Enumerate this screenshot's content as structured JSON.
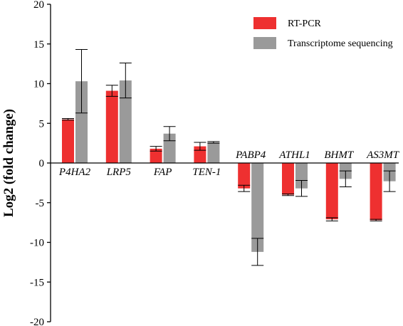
{
  "chart_data": {
    "type": "bar",
    "title": "",
    "xlabel": "",
    "ylabel": "Log2 (fold change)",
    "ylim": [
      -20,
      20
    ],
    "yticks": [
      -20,
      -15,
      -10,
      -5,
      0,
      5,
      10,
      15,
      20
    ],
    "categories": [
      "P4HA2",
      "LRP5",
      "FAP",
      "TEN-1",
      "PABP4",
      "ATHL1",
      "BHMT",
      "AS3MT"
    ],
    "series": [
      {
        "name": "RT-PCR",
        "color": "#ee3030",
        "values": [
          5.5,
          9.1,
          1.8,
          2.1,
          -3.2,
          -4.0,
          -7.1,
          -7.2
        ],
        "errors": [
          0.1,
          0.7,
          0.3,
          0.5,
          0.4,
          0.1,
          0.2,
          0.1
        ]
      },
      {
        "name": "Transcriptome sequencing",
        "color": "#9a9a9a",
        "values": [
          10.3,
          10.4,
          3.7,
          2.6,
          -11.2,
          -3.2,
          -2.0,
          -2.3
        ],
        "errors": [
          4.0,
          2.2,
          0.9,
          0.1,
          1.7,
          1.0,
          1.0,
          1.3
        ]
      }
    ],
    "legend_position": "top-right",
    "grid": false
  }
}
